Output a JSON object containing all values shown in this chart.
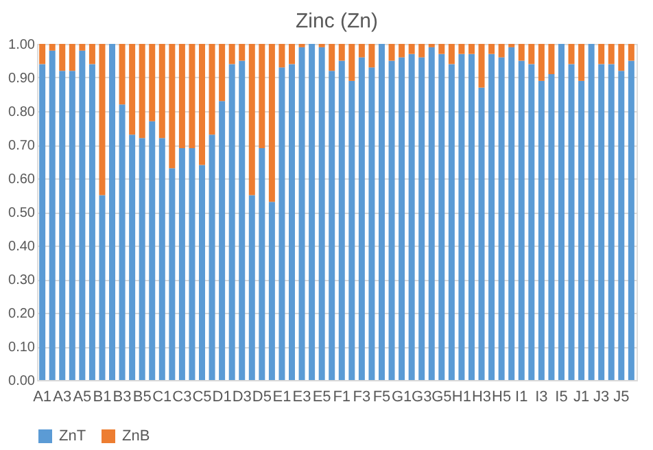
{
  "chart_data": {
    "type": "bar",
    "title": "Zinc (Zn)",
    "stacked": true,
    "categories": [
      "A1",
      null,
      "A3",
      null,
      "A5",
      null,
      "B1",
      null,
      "B3",
      null,
      "B5",
      null,
      "C1",
      null,
      "C3",
      null,
      "C5",
      null,
      "D1",
      null,
      "D3",
      null,
      "D5",
      null,
      "E1",
      null,
      "E3",
      null,
      "E5",
      null,
      "F1",
      null,
      "F3",
      null,
      "F5",
      null,
      "G1",
      null,
      "G3",
      null,
      "G5",
      null,
      "H1",
      null,
      "H3",
      null,
      "H5",
      null,
      "I1",
      null,
      "I3",
      null,
      "I5",
      null,
      "J1",
      null,
      "J3",
      null,
      "J5",
      null
    ],
    "series": [
      {
        "name": "ZnT",
        "color": "#5b9bd5",
        "values": [
          0.94,
          0.98,
          0.92,
          0.92,
          0.98,
          0.94,
          0.55,
          1.0,
          0.82,
          0.73,
          0.72,
          0.77,
          0.72,
          0.63,
          0.69,
          0.69,
          0.64,
          0.73,
          0.83,
          0.94,
          0.95,
          0.55,
          0.69,
          0.53,
          0.93,
          0.94,
          0.99,
          1.0,
          0.99,
          0.92,
          0.95,
          0.89,
          0.96,
          0.93,
          1.0,
          0.95,
          0.96,
          0.97,
          0.96,
          0.99,
          0.97,
          0.94,
          0.97,
          0.97,
          0.87,
          0.97,
          0.96,
          0.99,
          0.95,
          0.94,
          0.89,
          0.91,
          1.0,
          0.94,
          0.89,
          1.0,
          0.94,
          0.94,
          0.92,
          0.95
        ]
      },
      {
        "name": "ZnB",
        "color": "#ed7d31",
        "values": [
          0.06,
          0.02,
          0.08,
          0.08,
          0.02,
          0.06,
          0.45,
          0.0,
          0.18,
          0.27,
          0.28,
          0.23,
          0.28,
          0.37,
          0.31,
          0.31,
          0.36,
          0.27,
          0.17,
          0.06,
          0.05,
          0.45,
          0.31,
          0.47,
          0.07,
          0.06,
          0.01,
          0.0,
          0.01,
          0.08,
          0.05,
          0.11,
          0.04,
          0.07,
          0.0,
          0.05,
          0.04,
          0.03,
          0.04,
          0.01,
          0.03,
          0.06,
          0.03,
          0.03,
          0.13,
          0.03,
          0.04,
          0.01,
          0.05,
          0.06,
          0.11,
          0.09,
          0.0,
          0.06,
          0.11,
          0.0,
          0.06,
          0.06,
          0.08,
          0.05
        ]
      }
    ],
    "ylim": [
      0,
      1
    ],
    "yticks": [
      {
        "value": 0,
        "label": "0.00"
      },
      {
        "value": 0.1,
        "label": "0.10"
      },
      {
        "value": 0.2,
        "label": "0.20"
      },
      {
        "value": 0.3,
        "label": "0.30"
      },
      {
        "value": 0.4,
        "label": "0.40"
      },
      {
        "value": 0.5,
        "label": "0.50"
      },
      {
        "value": 0.6,
        "label": "0.60"
      },
      {
        "value": 0.7,
        "label": "0.70"
      },
      {
        "value": 0.8,
        "label": "0.80"
      },
      {
        "value": 0.9,
        "label": "0.90"
      },
      {
        "value": 1,
        "label": "1.00"
      }
    ],
    "grid": "y",
    "legend": "bottom"
  }
}
